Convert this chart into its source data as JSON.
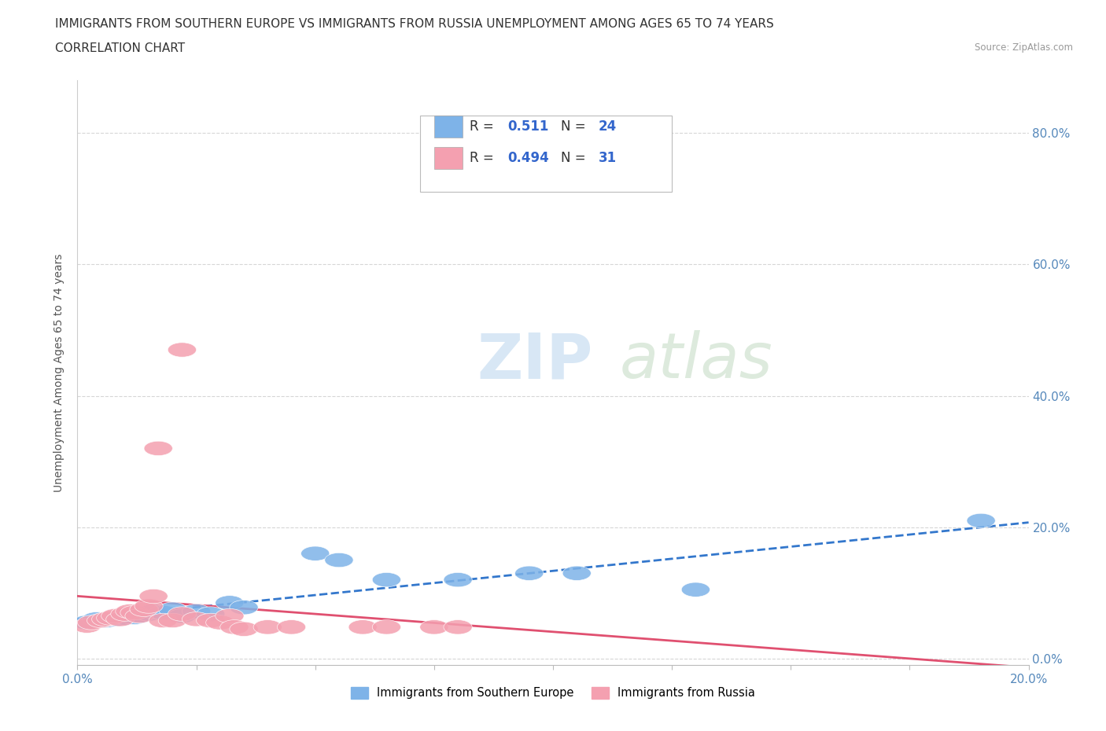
{
  "title_line1": "IMMIGRANTS FROM SOUTHERN EUROPE VS IMMIGRANTS FROM RUSSIA UNEMPLOYMENT AMONG AGES 65 TO 74 YEARS",
  "title_line2": "CORRELATION CHART",
  "source_text": "Source: ZipAtlas.com",
  "ylabel": "Unemployment Among Ages 65 to 74 years",
  "y_tick_labels": [
    "0.0%",
    "20.0%",
    "40.0%",
    "60.0%",
    "80.0%"
  ],
  "y_tick_values": [
    0.0,
    0.2,
    0.4,
    0.6,
    0.8
  ],
  "xlim": [
    0.0,
    0.2
  ],
  "ylim": [
    -0.01,
    0.88
  ],
  "blue_R": 0.511,
  "blue_N": 24,
  "pink_R": 0.494,
  "pink_N": 31,
  "blue_color": "#7EB3E8",
  "pink_color": "#F4A0B0",
  "blue_scatter": [
    [
      0.002,
      0.055
    ],
    [
      0.004,
      0.06
    ],
    [
      0.006,
      0.058
    ],
    [
      0.008,
      0.06
    ],
    [
      0.01,
      0.062
    ],
    [
      0.012,
      0.063
    ],
    [
      0.013,
      0.065
    ],
    [
      0.015,
      0.068
    ],
    [
      0.016,
      0.072
    ],
    [
      0.018,
      0.07
    ],
    [
      0.02,
      0.075
    ],
    [
      0.022,
      0.065
    ],
    [
      0.025,
      0.072
    ],
    [
      0.028,
      0.068
    ],
    [
      0.032,
      0.085
    ],
    [
      0.035,
      0.078
    ],
    [
      0.05,
      0.16
    ],
    [
      0.055,
      0.15
    ],
    [
      0.065,
      0.12
    ],
    [
      0.08,
      0.12
    ],
    [
      0.095,
      0.13
    ],
    [
      0.105,
      0.13
    ],
    [
      0.13,
      0.105
    ],
    [
      0.19,
      0.21
    ]
  ],
  "pink_scatter": [
    [
      0.002,
      0.05
    ],
    [
      0.003,
      0.055
    ],
    [
      0.005,
      0.058
    ],
    [
      0.006,
      0.06
    ],
    [
      0.007,
      0.062
    ],
    [
      0.008,
      0.065
    ],
    [
      0.009,
      0.06
    ],
    [
      0.01,
      0.068
    ],
    [
      0.011,
      0.072
    ],
    [
      0.012,
      0.07
    ],
    [
      0.013,
      0.065
    ],
    [
      0.014,
      0.075
    ],
    [
      0.015,
      0.08
    ],
    [
      0.016,
      0.095
    ],
    [
      0.017,
      0.32
    ],
    [
      0.018,
      0.058
    ],
    [
      0.02,
      0.058
    ],
    [
      0.022,
      0.068
    ],
    [
      0.022,
      0.47
    ],
    [
      0.025,
      0.06
    ],
    [
      0.028,
      0.058
    ],
    [
      0.03,
      0.055
    ],
    [
      0.032,
      0.065
    ],
    [
      0.033,
      0.048
    ],
    [
      0.035,
      0.045
    ],
    [
      0.04,
      0.048
    ],
    [
      0.045,
      0.048
    ],
    [
      0.06,
      0.048
    ],
    [
      0.065,
      0.048
    ],
    [
      0.075,
      0.048
    ],
    [
      0.08,
      0.048
    ]
  ],
  "watermark_text_zip": "ZIP",
  "watermark_text_atlas": "atlas",
  "legend_label_blue": "Immigrants from Southern Europe",
  "legend_label_pink": "Immigrants from Russia",
  "background_color": "#FFFFFF",
  "grid_color": "#CCCCCC",
  "title_fontsize": 11,
  "axis_label_fontsize": 10,
  "tick_fontsize": 11
}
